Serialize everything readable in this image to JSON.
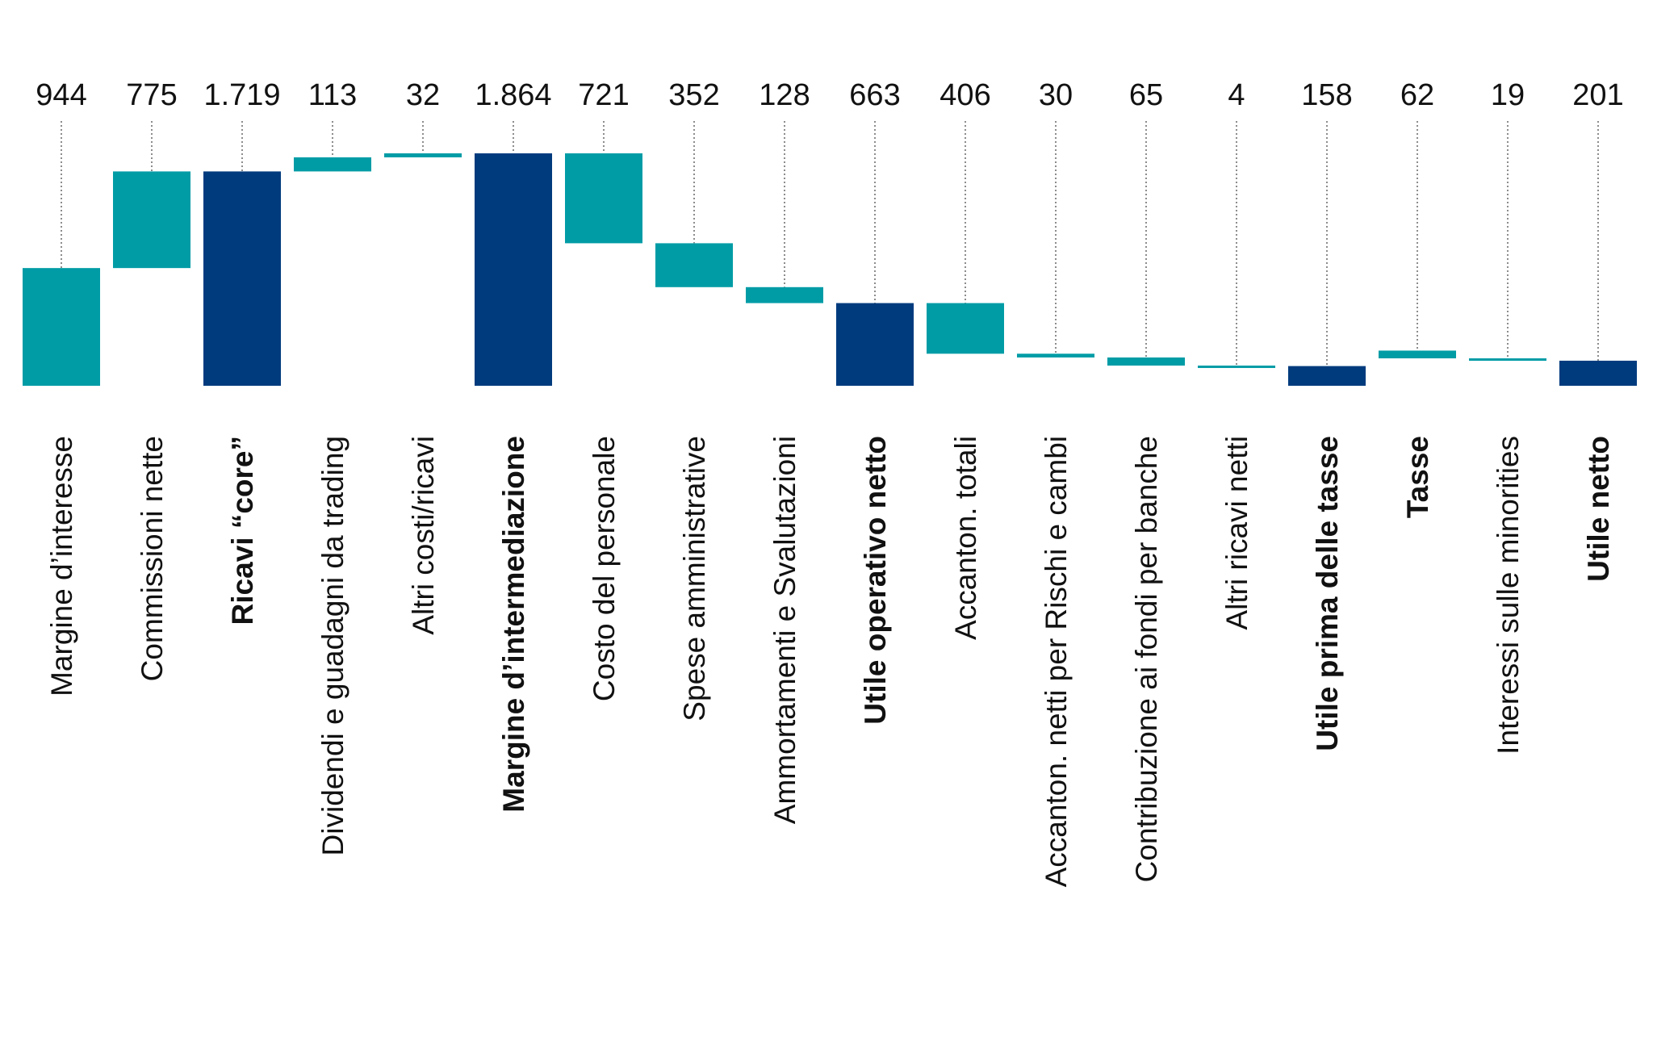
{
  "chart_data": {
    "type": "waterfall",
    "title": "",
    "xlabel": "",
    "ylabel": "",
    "ylim": [
      0,
      2000
    ],
    "colors": {
      "delta": "#009ca6",
      "total": "#003b7e"
    },
    "items": [
      {
        "label": "Margine d’interesse",
        "display": "944",
        "start": 0,
        "end": 944,
        "kind": "delta",
        "bold": false
      },
      {
        "label": "Commissioni nette",
        "display": "775",
        "start": 944,
        "end": 1719,
        "kind": "delta",
        "bold": false
      },
      {
        "label": "Ricavi “core”",
        "display": "1.719",
        "start": 0,
        "end": 1719,
        "kind": "total",
        "bold": true
      },
      {
        "label": "Dividendi e guadagni da trading",
        "display": "113",
        "start": 1719,
        "end": 1832,
        "kind": "delta",
        "bold": false
      },
      {
        "label": "Altri costi/ricavi",
        "display": "32",
        "start": 1832,
        "end": 1864,
        "kind": "delta",
        "bold": false
      },
      {
        "label": "Margine d’intermediazione",
        "display": "1.864",
        "start": 0,
        "end": 1864,
        "kind": "total",
        "bold": true
      },
      {
        "label": "Costo del personale",
        "display": "721",
        "start": 1864,
        "end": 1143,
        "kind": "delta",
        "bold": false
      },
      {
        "label": "Spese amministrative",
        "display": "352",
        "start": 1143,
        "end": 791,
        "kind": "delta",
        "bold": false
      },
      {
        "label": "Ammortamenti e Svalutazioni",
        "display": "128",
        "start": 791,
        "end": 663,
        "kind": "delta",
        "bold": false
      },
      {
        "label": "Utile operativo netto",
        "display": "663",
        "start": 0,
        "end": 663,
        "kind": "total",
        "bold": true
      },
      {
        "label": "Accanton. totali",
        "display": "406",
        "start": 663,
        "end": 257,
        "kind": "delta",
        "bold": false
      },
      {
        "label": "Accanton. netti per Rischi e cambi",
        "display": "30",
        "start": 257,
        "end": 227,
        "kind": "delta",
        "bold": false
      },
      {
        "label": "Contribuzione ai fondi per banche",
        "display": "65",
        "start": 227,
        "end": 162,
        "kind": "delta",
        "bold": false
      },
      {
        "label": "Altri ricavi netti",
        "display": "4",
        "start": 162,
        "end": 158,
        "kind": "delta",
        "bold": false
      },
      {
        "label": "Utile prima delle tasse",
        "display": "158",
        "start": 0,
        "end": 158,
        "kind": "total",
        "bold": true
      },
      {
        "label": "Tasse",
        "display": "62",
        "start": 220,
        "end": 282,
        "kind": "delta",
        "bold": true
      },
      {
        "label": "Interessi sulle minorities",
        "display": "19",
        "start": 220,
        "end": 201,
        "kind": "delta",
        "bold": false
      },
      {
        "label": "Utile netto",
        "display": "201",
        "start": 0,
        "end": 201,
        "kind": "total",
        "bold": true
      }
    ]
  }
}
